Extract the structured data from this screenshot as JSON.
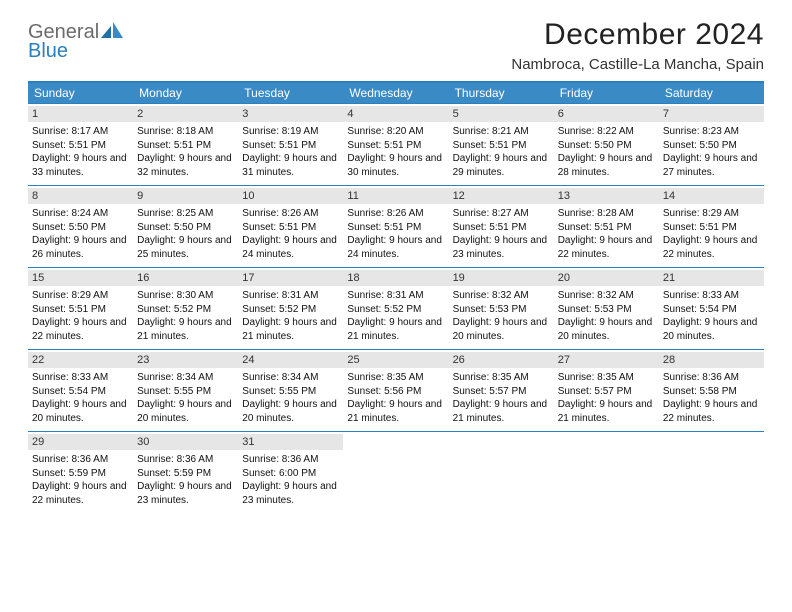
{
  "brand": {
    "line1": "General",
    "line2": "Blue"
  },
  "title": "December 2024",
  "location": "Nambroca, Castille-La Mancha, Spain",
  "colors": {
    "accent": "#2a7fbf",
    "header_bg": "#3a8ac6",
    "date_bar_bg": "#e6e6e6",
    "text": "#111111",
    "logo_gray": "#6b6b6b"
  },
  "day_names": [
    "Sunday",
    "Monday",
    "Tuesday",
    "Wednesday",
    "Thursday",
    "Friday",
    "Saturday"
  ],
  "weeks": [
    [
      {
        "d": "1",
        "sr": "8:17 AM",
        "ss": "5:51 PM",
        "dl": "9 hours and 33 minutes."
      },
      {
        "d": "2",
        "sr": "8:18 AM",
        "ss": "5:51 PM",
        "dl": "9 hours and 32 minutes."
      },
      {
        "d": "3",
        "sr": "8:19 AM",
        "ss": "5:51 PM",
        "dl": "9 hours and 31 minutes."
      },
      {
        "d": "4",
        "sr": "8:20 AM",
        "ss": "5:51 PM",
        "dl": "9 hours and 30 minutes."
      },
      {
        "d": "5",
        "sr": "8:21 AM",
        "ss": "5:51 PM",
        "dl": "9 hours and 29 minutes."
      },
      {
        "d": "6",
        "sr": "8:22 AM",
        "ss": "5:50 PM",
        "dl": "9 hours and 28 minutes."
      },
      {
        "d": "7",
        "sr": "8:23 AM",
        "ss": "5:50 PM",
        "dl": "9 hours and 27 minutes."
      }
    ],
    [
      {
        "d": "8",
        "sr": "8:24 AM",
        "ss": "5:50 PM",
        "dl": "9 hours and 26 minutes."
      },
      {
        "d": "9",
        "sr": "8:25 AM",
        "ss": "5:50 PM",
        "dl": "9 hours and 25 minutes."
      },
      {
        "d": "10",
        "sr": "8:26 AM",
        "ss": "5:51 PM",
        "dl": "9 hours and 24 minutes."
      },
      {
        "d": "11",
        "sr": "8:26 AM",
        "ss": "5:51 PM",
        "dl": "9 hours and 24 minutes."
      },
      {
        "d": "12",
        "sr": "8:27 AM",
        "ss": "5:51 PM",
        "dl": "9 hours and 23 minutes."
      },
      {
        "d": "13",
        "sr": "8:28 AM",
        "ss": "5:51 PM",
        "dl": "9 hours and 22 minutes."
      },
      {
        "d": "14",
        "sr": "8:29 AM",
        "ss": "5:51 PM",
        "dl": "9 hours and 22 minutes."
      }
    ],
    [
      {
        "d": "15",
        "sr": "8:29 AM",
        "ss": "5:51 PM",
        "dl": "9 hours and 22 minutes."
      },
      {
        "d": "16",
        "sr": "8:30 AM",
        "ss": "5:52 PM",
        "dl": "9 hours and 21 minutes."
      },
      {
        "d": "17",
        "sr": "8:31 AM",
        "ss": "5:52 PM",
        "dl": "9 hours and 21 minutes."
      },
      {
        "d": "18",
        "sr": "8:31 AM",
        "ss": "5:52 PM",
        "dl": "9 hours and 21 minutes."
      },
      {
        "d": "19",
        "sr": "8:32 AM",
        "ss": "5:53 PM",
        "dl": "9 hours and 20 minutes."
      },
      {
        "d": "20",
        "sr": "8:32 AM",
        "ss": "5:53 PM",
        "dl": "9 hours and 20 minutes."
      },
      {
        "d": "21",
        "sr": "8:33 AM",
        "ss": "5:54 PM",
        "dl": "9 hours and 20 minutes."
      }
    ],
    [
      {
        "d": "22",
        "sr": "8:33 AM",
        "ss": "5:54 PM",
        "dl": "9 hours and 20 minutes."
      },
      {
        "d": "23",
        "sr": "8:34 AM",
        "ss": "5:55 PM",
        "dl": "9 hours and 20 minutes."
      },
      {
        "d": "24",
        "sr": "8:34 AM",
        "ss": "5:55 PM",
        "dl": "9 hours and 20 minutes."
      },
      {
        "d": "25",
        "sr": "8:35 AM",
        "ss": "5:56 PM",
        "dl": "9 hours and 21 minutes."
      },
      {
        "d": "26",
        "sr": "8:35 AM",
        "ss": "5:57 PM",
        "dl": "9 hours and 21 minutes."
      },
      {
        "d": "27",
        "sr": "8:35 AM",
        "ss": "5:57 PM",
        "dl": "9 hours and 21 minutes."
      },
      {
        "d": "28",
        "sr": "8:36 AM",
        "ss": "5:58 PM",
        "dl": "9 hours and 22 minutes."
      }
    ],
    [
      {
        "d": "29",
        "sr": "8:36 AM",
        "ss": "5:59 PM",
        "dl": "9 hours and 22 minutes."
      },
      {
        "d": "30",
        "sr": "8:36 AM",
        "ss": "5:59 PM",
        "dl": "9 hours and 23 minutes."
      },
      {
        "d": "31",
        "sr": "8:36 AM",
        "ss": "6:00 PM",
        "dl": "9 hours and 23 minutes."
      },
      null,
      null,
      null,
      null
    ]
  ],
  "labels": {
    "sunrise": "Sunrise:",
    "sunset": "Sunset:",
    "daylight": "Daylight:"
  }
}
